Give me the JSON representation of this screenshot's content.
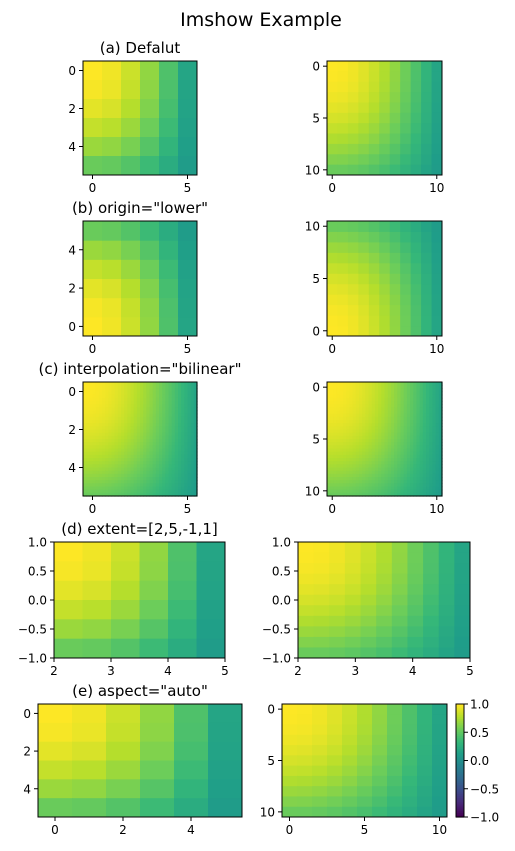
{
  "figure": {
    "suptitle": "Imshow Example"
  },
  "colormap": {
    "name": "viridis",
    "vmin": -1.0,
    "vmax": 1.0
  },
  "chart_data": [
    {
      "type": "heatmap",
      "title": "(a) Defalut",
      "rows": 6,
      "cols": 6,
      "origin": "upper",
      "interpolation": "nearest",
      "x_ticks": [
        0,
        5
      ],
      "x_tick_labels": [
        "0",
        "5"
      ],
      "y_ticks": [
        0,
        2,
        4
      ],
      "y_tick_labels": [
        "0",
        "2",
        "4"
      ]
    },
    {
      "type": "heatmap",
      "title": "",
      "rows": 11,
      "cols": 11,
      "origin": "upper",
      "interpolation": "nearest",
      "x_ticks": [
        0,
        10
      ],
      "x_tick_labels": [
        "0",
        "10"
      ],
      "y_ticks": [
        0,
        5,
        10
      ],
      "y_tick_labels": [
        "0",
        "5",
        "10"
      ]
    },
    {
      "type": "heatmap",
      "title": "(b) origin=\"lower\"",
      "rows": 6,
      "cols": 6,
      "origin": "lower",
      "interpolation": "nearest",
      "x_ticks": [
        0,
        5
      ],
      "x_tick_labels": [
        "0",
        "5"
      ],
      "y_ticks": [
        0,
        2,
        4
      ],
      "y_tick_labels": [
        "0",
        "2",
        "4"
      ]
    },
    {
      "type": "heatmap",
      "title": "",
      "rows": 11,
      "cols": 11,
      "origin": "lower",
      "interpolation": "nearest",
      "x_ticks": [
        0,
        10
      ],
      "x_tick_labels": [
        "0",
        "10"
      ],
      "y_ticks": [
        0,
        5,
        10
      ],
      "y_tick_labels": [
        "0",
        "5",
        "10"
      ]
    },
    {
      "type": "heatmap",
      "title": "(c) interpolation=\"bilinear\"",
      "rows": 6,
      "cols": 6,
      "origin": "upper",
      "interpolation": "bilinear",
      "x_ticks": [
        0,
        5
      ],
      "x_tick_labels": [
        "0",
        "5"
      ],
      "y_ticks": [
        0,
        2,
        4
      ],
      "y_tick_labels": [
        "0",
        "2",
        "4"
      ]
    },
    {
      "type": "heatmap",
      "title": "",
      "rows": 11,
      "cols": 11,
      "origin": "upper",
      "interpolation": "bilinear",
      "x_ticks": [
        0,
        10
      ],
      "x_tick_labels": [
        "0",
        "10"
      ],
      "y_ticks": [
        0,
        5,
        10
      ],
      "y_tick_labels": [
        "0",
        "5",
        "10"
      ]
    },
    {
      "type": "heatmap",
      "title": "(d) extent=[2,5,-1,1]",
      "rows": 6,
      "cols": 6,
      "origin": "upper",
      "interpolation": "nearest",
      "extent": [
        2,
        5,
        -1,
        1
      ],
      "x_ticks": [
        2,
        3,
        4,
        5
      ],
      "x_tick_labels": [
        "2",
        "3",
        "4",
        "5"
      ],
      "y_ticks": [
        1.0,
        0.5,
        0.0,
        -0.5,
        -1.0
      ],
      "y_tick_labels": [
        "1.0",
        "0.5",
        "0.0",
        "−0.5",
        "−1.0"
      ]
    },
    {
      "type": "heatmap",
      "title": "",
      "rows": 11,
      "cols": 11,
      "origin": "upper",
      "interpolation": "nearest",
      "extent": [
        2,
        5,
        -1,
        1
      ],
      "x_ticks": [
        2,
        3,
        4,
        5
      ],
      "x_tick_labels": [
        "2",
        "3",
        "4",
        "5"
      ],
      "y_ticks": [
        1.0,
        0.5,
        0.0,
        -0.5,
        -1.0
      ],
      "y_tick_labels": [
        "1.0",
        "0.5",
        "0.0",
        "−0.5",
        "−1.0"
      ]
    },
    {
      "type": "heatmap",
      "title": "(e) aspect=\"auto\"",
      "rows": 6,
      "cols": 6,
      "origin": "upper",
      "interpolation": "nearest",
      "x_ticks": [
        0,
        2,
        4
      ],
      "x_tick_labels": [
        "0",
        "2",
        "4"
      ],
      "y_ticks": [
        0,
        2,
        4
      ],
      "y_tick_labels": [
        "0",
        "2",
        "4"
      ]
    },
    {
      "type": "heatmap",
      "title": "",
      "rows": 11,
      "cols": 11,
      "origin": "upper",
      "interpolation": "nearest",
      "x_ticks": [
        0,
        5,
        10
      ],
      "x_tick_labels": [
        "0",
        "5",
        "10"
      ],
      "y_ticks": [
        0,
        5,
        10
      ],
      "y_tick_labels": [
        "0",
        "5",
        "10"
      ]
    }
  ],
  "colorbar": {
    "ticks": [
      1.0,
      0.5,
      0.0,
      -0.5,
      -1.0
    ],
    "tick_labels": [
      "1.0",
      "0.5",
      "0.0",
      "−0.5",
      "−1.0"
    ]
  }
}
